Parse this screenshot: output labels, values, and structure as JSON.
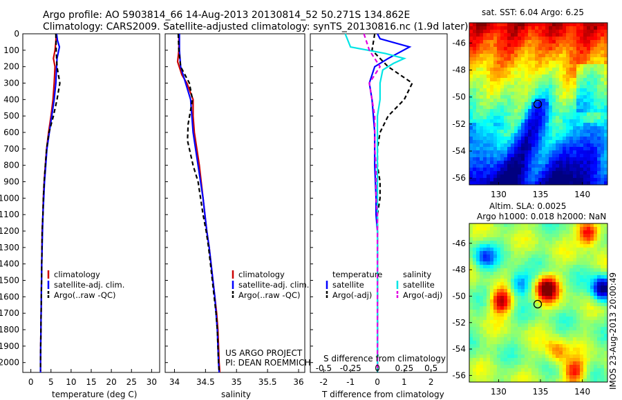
{
  "title": {
    "line1": "Argo profile: AO 5903814_66 14-Aug-2013 20130814_52 50.271S 134.862E",
    "line2": "Climatology: CARS2009. Satellite-adjusted climatology: synTS_20130816.nc (1.9d later)"
  },
  "colors": {
    "climatology": "#cc0000",
    "satellite": "#0000ff",
    "argo": "#000000",
    "satellite_salinity": "#00e5e5",
    "argo_salinity": "#e000e0"
  },
  "chart_data": [
    {
      "type": "line",
      "xlabel": "temperature (deg C)",
      "x_ticks": [
        "0",
        "5",
        "10",
        "15",
        "20",
        "25",
        "30"
      ],
      "xlim": [
        -2,
        32
      ],
      "ylim": [
        2060,
        0
      ],
      "y_ticks": [
        "0",
        "100",
        "200",
        "300",
        "400",
        "500",
        "600",
        "700",
        "800",
        "900",
        "1000",
        "1100",
        "1200",
        "1300",
        "1400",
        "1500",
        "1600",
        "1700",
        "1800",
        "1900",
        "2000"
      ],
      "legend": [
        "climatology",
        "satellite-adj. clim.",
        "Argo(..raw -QC)"
      ],
      "series": [
        {
          "name": "climatology",
          "color": "#cc0000",
          "dash": "",
          "points": [
            [
              6.3,
              0
            ],
            [
              6.2,
              50
            ],
            [
              6.0,
              100
            ],
            [
              5.6,
              150
            ],
            [
              6.0,
              200
            ],
            [
              5.8,
              300
            ],
            [
              5.5,
              400
            ],
            [
              5.0,
              500
            ],
            [
              4.4,
              600
            ],
            [
              3.9,
              700
            ],
            [
              3.6,
              800
            ],
            [
              3.3,
              900
            ],
            [
              3.1,
              1000
            ],
            [
              3.0,
              1100
            ],
            [
              2.8,
              1200
            ],
            [
              2.7,
              1400
            ],
            [
              2.6,
              1600
            ],
            [
              2.5,
              1800
            ],
            [
              2.4,
              2000
            ],
            [
              2.4,
              2060
            ]
          ]
        },
        {
          "name": "satellite-adj. clim.",
          "color": "#0000ff",
          "dash": "",
          "points": [
            [
              6.4,
              0
            ],
            [
              6.6,
              40
            ],
            [
              7.1,
              80
            ],
            [
              6.5,
              150
            ],
            [
              6.4,
              200
            ],
            [
              6.2,
              300
            ],
            [
              5.8,
              400
            ],
            [
              5.2,
              500
            ],
            [
              4.6,
              600
            ],
            [
              4.0,
              700
            ],
            [
              3.7,
              800
            ],
            [
              3.4,
              900
            ],
            [
              3.2,
              1000
            ],
            [
              3.0,
              1100
            ],
            [
              2.9,
              1200
            ],
            [
              2.7,
              1400
            ],
            [
              2.6,
              1600
            ],
            [
              2.5,
              1800
            ],
            [
              2.4,
              2000
            ],
            [
              2.4,
              2060
            ]
          ]
        },
        {
          "name": "Argo(..raw -QC)",
          "color": "#000000",
          "dash": "6,4",
          "points": [
            [
              6.2,
              0
            ],
            [
              6.3,
              100
            ],
            [
              6.5,
              200
            ],
            [
              7.2,
              300
            ],
            [
              6.5,
              400
            ],
            [
              5.6,
              500
            ],
            [
              4.5,
              600
            ],
            [
              3.9,
              700
            ],
            [
              3.6,
              800
            ],
            [
              3.3,
              900
            ],
            [
              3.1,
              1000
            ],
            [
              3.0,
              1100
            ],
            [
              2.8,
              1200
            ],
            [
              2.7,
              1400
            ],
            [
              2.6,
              1600
            ],
            [
              2.5,
              1800
            ],
            [
              2.4,
              2000
            ],
            [
              2.4,
              2050
            ]
          ]
        }
      ]
    },
    {
      "type": "line",
      "xlabel": "salinity",
      "x_ticks": [
        "34",
        "34.5",
        "35",
        "35.5",
        "36"
      ],
      "xlim": [
        33.85,
        36.1
      ],
      "ylim": [
        2060,
        0
      ],
      "legend": [
        "climatology",
        "satellite-adj. clim.",
        "Argo(..raw -QC)"
      ],
      "annotation": [
        "US ARGO PROJECT",
        "PI: DEAN ROEMMICH"
      ],
      "series": [
        {
          "name": "climatology",
          "color": "#cc0000",
          "dash": "",
          "points": [
            [
              34.07,
              0
            ],
            [
              34.07,
              100
            ],
            [
              34.05,
              170
            ],
            [
              34.12,
              250
            ],
            [
              34.2,
              300
            ],
            [
              34.3,
              400
            ],
            [
              34.3,
              500
            ],
            [
              34.32,
              600
            ],
            [
              34.36,
              700
            ],
            [
              34.4,
              800
            ],
            [
              34.43,
              900
            ],
            [
              34.46,
              1000
            ],
            [
              34.49,
              1100
            ],
            [
              34.52,
              1200
            ],
            [
              34.56,
              1300
            ],
            [
              34.59,
              1400
            ],
            [
              34.62,
              1500
            ],
            [
              34.65,
              1600
            ],
            [
              34.68,
              1700
            ],
            [
              34.7,
              1800
            ],
            [
              34.71,
              1900
            ],
            [
              34.72,
              2000
            ],
            [
              34.73,
              2060
            ]
          ]
        },
        {
          "name": "satellite-adj. clim.",
          "color": "#0000ff",
          "dash": "",
          "points": [
            [
              34.08,
              0
            ],
            [
              34.08,
              100
            ],
            [
              34.1,
              200
            ],
            [
              34.18,
              300
            ],
            [
              34.26,
              400
            ],
            [
              34.28,
              500
            ],
            [
              34.3,
              600
            ],
            [
              34.34,
              700
            ],
            [
              34.38,
              800
            ],
            [
              34.42,
              900
            ],
            [
              34.46,
              1000
            ],
            [
              34.49,
              1100
            ],
            [
              34.52,
              1200
            ],
            [
              34.56,
              1300
            ],
            [
              34.59,
              1400
            ],
            [
              34.62,
              1500
            ],
            [
              34.65,
              1600
            ],
            [
              34.67,
              1700
            ],
            [
              34.69,
              1800
            ],
            [
              34.7,
              1900
            ],
            [
              34.71,
              2000
            ],
            [
              34.72,
              2060
            ]
          ]
        },
        {
          "name": "Argo(..raw -QC)",
          "color": "#000000",
          "dash": "6,4",
          "points": [
            [
              34.06,
              0
            ],
            [
              34.07,
              100
            ],
            [
              34.1,
              200
            ],
            [
              34.24,
              300
            ],
            [
              34.29,
              400
            ],
            [
              34.22,
              550
            ],
            [
              34.21,
              650
            ],
            [
              34.3,
              800
            ],
            [
              34.38,
              900
            ],
            [
              34.42,
              1000
            ],
            [
              34.46,
              1100
            ],
            [
              34.51,
              1200
            ],
            [
              34.55,
              1300
            ],
            [
              34.58,
              1400
            ],
            [
              34.61,
              1500
            ],
            [
              34.64,
              1600
            ],
            [
              34.67,
              1700
            ],
            [
              34.69,
              1800
            ],
            [
              34.7,
              1900
            ],
            [
              34.71,
              2000
            ],
            [
              34.72,
              2050
            ]
          ]
        }
      ]
    },
    {
      "type": "line",
      "xlabel": "T difference from climatology",
      "x_ticks": [
        "-2",
        "-1",
        "0",
        "1",
        "2"
      ],
      "xlim": [
        -2.5,
        2.6
      ],
      "top_xlabel": "S difference from climatology",
      "top_x_ticks": [
        "-0.5",
        "-0.25",
        "0",
        "0.25",
        "0.5"
      ],
      "ylim": [
        2060,
        0
      ],
      "legend_headers": [
        "temperature",
        "salinity"
      ],
      "legend": [
        "satellite",
        "Argo(-adj)",
        "satellite",
        "Argo(-adj)"
      ],
      "series": [
        {
          "name": "temperature satellite",
          "color": "#0000ff",
          "dash": "",
          "points": [
            [
              0,
              0
            ],
            [
              0.1,
              30
            ],
            [
              1.2,
              80
            ],
            [
              0.4,
              150
            ],
            [
              -0.1,
              200
            ],
            [
              -0.3,
              300
            ],
            [
              -0.2,
              400
            ],
            [
              -0.1,
              600
            ],
            [
              -0.1,
              800
            ],
            [
              -0.05,
              1000
            ],
            [
              -0.05,
              1100
            ],
            [
              0,
              1200
            ],
            [
              0,
              1400
            ],
            [
              0,
              1600
            ],
            [
              0,
              1800
            ],
            [
              0,
              2000
            ],
            [
              0,
              2060
            ]
          ]
        },
        {
          "name": "temperature Argo(-adj)",
          "color": "#000000",
          "dash": "6,4",
          "points": [
            [
              -0.1,
              0
            ],
            [
              -0.2,
              100
            ],
            [
              0.4,
              200
            ],
            [
              1.3,
              300
            ],
            [
              1.0,
              400
            ],
            [
              0.4,
              500
            ],
            [
              0.1,
              600
            ],
            [
              0,
              700
            ],
            [
              0,
              800
            ],
            [
              0.1,
              900
            ],
            [
              0.1,
              1000
            ],
            [
              0,
              1100
            ],
            [
              0,
              1200
            ],
            [
              0,
              1400
            ],
            [
              0,
              1600
            ],
            [
              0,
              1800
            ],
            [
              0,
              2000
            ],
            [
              0,
              2050
            ]
          ]
        },
        {
          "name": "salinity satellite",
          "color": "#00e5e5",
          "dash": "",
          "points": [
            [
              -1.2,
              0
            ],
            [
              -1.0,
              80
            ],
            [
              0.3,
              120
            ],
            [
              1.0,
              150
            ],
            [
              0.6,
              180
            ],
            [
              0.2,
              220
            ],
            [
              0.1,
              300
            ],
            [
              0.1,
              400
            ],
            [
              0,
              500
            ],
            [
              0,
              700
            ],
            [
              0,
              900
            ],
            [
              0,
              1100
            ],
            [
              0,
              1300
            ],
            [
              0,
              1500
            ],
            [
              0,
              1700
            ],
            [
              0,
              1900
            ],
            [
              0,
              2060
            ]
          ]
        },
        {
          "name": "salinity Argo(-adj)",
          "color": "#e000e0",
          "dash": "6,4",
          "points": [
            [
              -0.5,
              0
            ],
            [
              -0.3,
              100
            ],
            [
              0.1,
              200
            ],
            [
              -0.3,
              300
            ],
            [
              -0.2,
              400
            ],
            [
              -0.1,
              500
            ],
            [
              -0.1,
              600
            ],
            [
              -0.1,
              700
            ],
            [
              -0.05,
              800
            ],
            [
              -0.05,
              900
            ],
            [
              -0.05,
              1000
            ],
            [
              0,
              1100
            ],
            [
              0,
              1200
            ],
            [
              0,
              1400
            ],
            [
              0,
              1600
            ],
            [
              0,
              1800
            ],
            [
              0,
              2000
            ],
            [
              0,
              2050
            ]
          ]
        }
      ]
    },
    {
      "type": "heatmap",
      "title": "sat. SST: 6.04 Argo: 6.25",
      "x_ticks": [
        "130",
        "135",
        "140"
      ],
      "y_ticks": [
        "-46",
        "-48",
        "-50",
        "-52",
        "-54",
        "-56"
      ],
      "xlim": [
        126.5,
        143
      ],
      "ylim": [
        -56.5,
        -44.5
      ],
      "marker": [
        134.862,
        -50.271
      ]
    },
    {
      "type": "heatmap",
      "title": "Altim. SLA: 0.0025",
      "subtitle": "Argo h1000: 0.018 h2000: NaN",
      "x_ticks": [
        "130",
        "135",
        "140"
      ],
      "y_ticks": [
        "-46",
        "-48",
        "-50",
        "-52",
        "-54",
        "-56"
      ],
      "xlim": [
        126.5,
        143
      ],
      "ylim": [
        -56.5,
        -44.5
      ],
      "marker": [
        134.862,
        -50.271
      ]
    }
  ],
  "timestamp": "IMOS 23-Aug-2013 20:00:49"
}
